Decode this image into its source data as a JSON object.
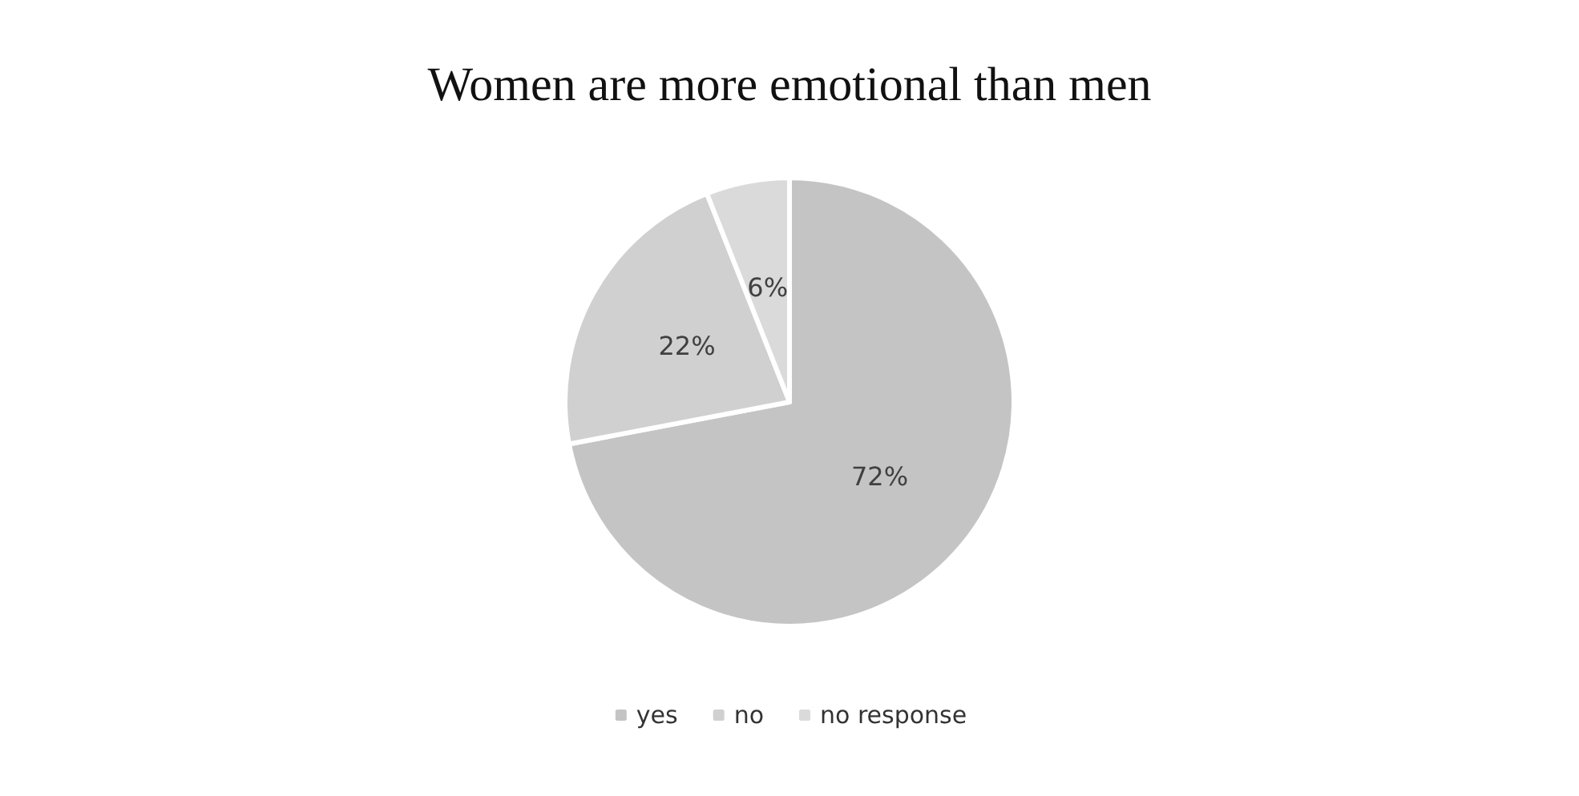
{
  "chart_data": {
    "type": "pie",
    "title": "Women are more emotional than men",
    "categories": [
      "yes",
      "no",
      "no response"
    ],
    "values": [
      72,
      22,
      6
    ],
    "colors": [
      "#c4c4c4",
      "#d0d0d0",
      "#dadada"
    ],
    "value_labels": [
      "72%",
      "22%",
      "6%"
    ],
    "legend": "bottom"
  }
}
